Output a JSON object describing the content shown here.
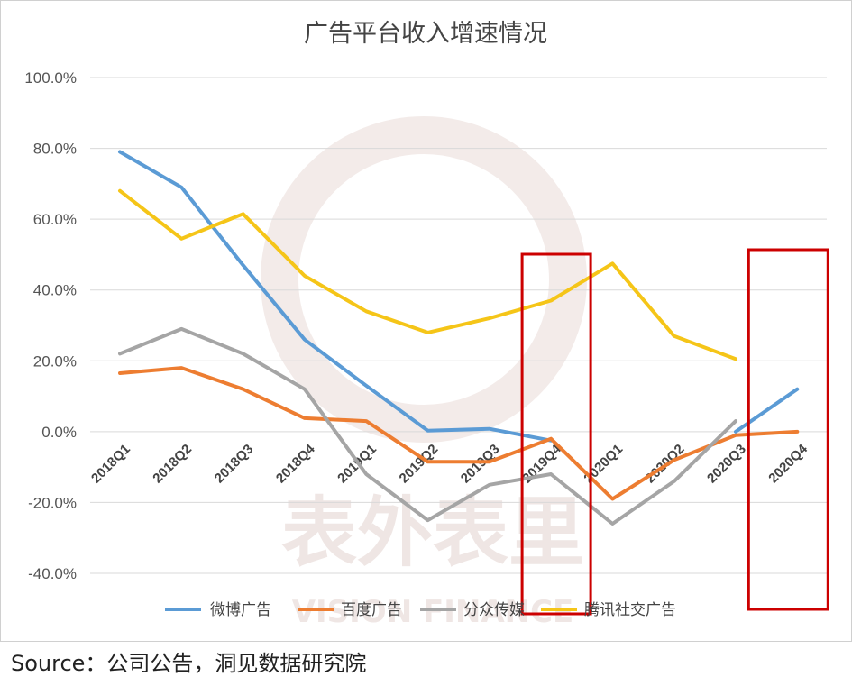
{
  "chart_data": {
    "type": "line",
    "title": "广告平台收入增速情况",
    "categories": [
      "2018Q1",
      "2018Q2",
      "2018Q3",
      "2018Q4",
      "2019Q1",
      "2019Q2",
      "2019Q3",
      "2019Q4",
      "2020Q1",
      "2020Q2",
      "2020Q3",
      "2020Q4"
    ],
    "ylim": [
      -40,
      100
    ],
    "yticks": [
      "100.0%",
      "80.0%",
      "60.0%",
      "40.0%",
      "20.0%",
      "0.0%",
      "-20.0%",
      "-40.0%"
    ],
    "grid": true,
    "legend_position": "bottom",
    "series": [
      {
        "name": "微博广告",
        "color": "#5b9bd5",
        "values": [
          79,
          69,
          47,
          26,
          13,
          0.3,
          0.8,
          -2.5,
          null,
          null,
          0,
          12
        ]
      },
      {
        "name": "百度广告",
        "color": "#ed7d31",
        "values": [
          16.5,
          18,
          12,
          3.8,
          3,
          -8.5,
          -8.5,
          -2,
          -19,
          -8,
          -1,
          0
        ]
      },
      {
        "name": "分众传媒",
        "color": "#a5a5a5",
        "values": [
          22,
          29,
          22,
          12,
          -12,
          -25,
          -15,
          -12,
          -26,
          -14,
          3,
          null
        ]
      },
      {
        "name": "腾讯社交广告",
        "color": "#f5c518",
        "values": [
          68,
          54.5,
          61.5,
          44,
          34,
          28,
          32,
          37,
          47.5,
          27,
          20.5,
          null
        ]
      }
    ],
    "annotations": [
      {
        "type": "highlight-box",
        "category": "2019Q4",
        "color": "#cc0000"
      },
      {
        "type": "highlight-box",
        "category": "2020Q4",
        "color": "#cc0000"
      }
    ]
  },
  "source": "Source：公司公告，洞见数据研究院",
  "watermark": {
    "cn": "表外表里",
    "en": "VISION FINANCE"
  }
}
